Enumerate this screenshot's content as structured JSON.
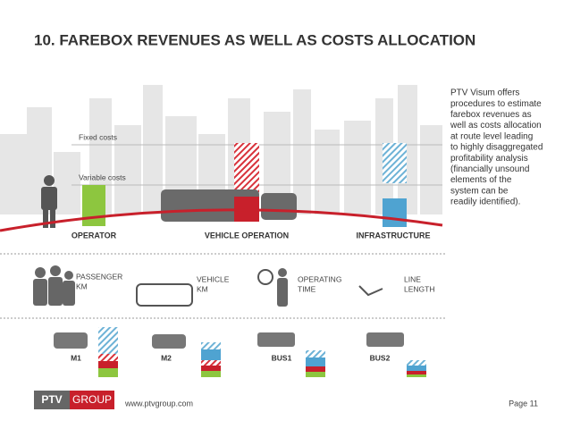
{
  "header": {
    "title": "10. FAREBOX REVENUES AS WELL AS COSTS ALLOCATION"
  },
  "diagram": {
    "fixed_costs": "Fixed costs",
    "variable_costs": "Variable costs",
    "groups": [
      "OPERATOR",
      "VEHICLE OPERATION",
      "INFRASTRUCTURE"
    ],
    "measures": [
      [
        "PASSENGER",
        "KM"
      ],
      [
        "VEHICLE",
        "KM"
      ],
      [
        "OPERATING",
        "TIME"
      ],
      [
        "LINE",
        "LENGTH"
      ]
    ],
    "lines": [
      "M1",
      "M2",
      "BUS1",
      "BUS2"
    ]
  },
  "sidebar": {
    "lines": [
      "PTV Visum offers",
      "procedures to estimate",
      "farebox revenues as",
      "well as costs allocation",
      "at route level leading",
      "to highly disaggregated",
      "profitability analysis",
      "(financially unsound",
      "elements of the",
      "system can be",
      "readily identified)."
    ]
  },
  "footer": {
    "logo_left": "PTV",
    "logo_right": "GROUP",
    "url": "www.ptvgroup.com",
    "page": "Page 11"
  }
}
